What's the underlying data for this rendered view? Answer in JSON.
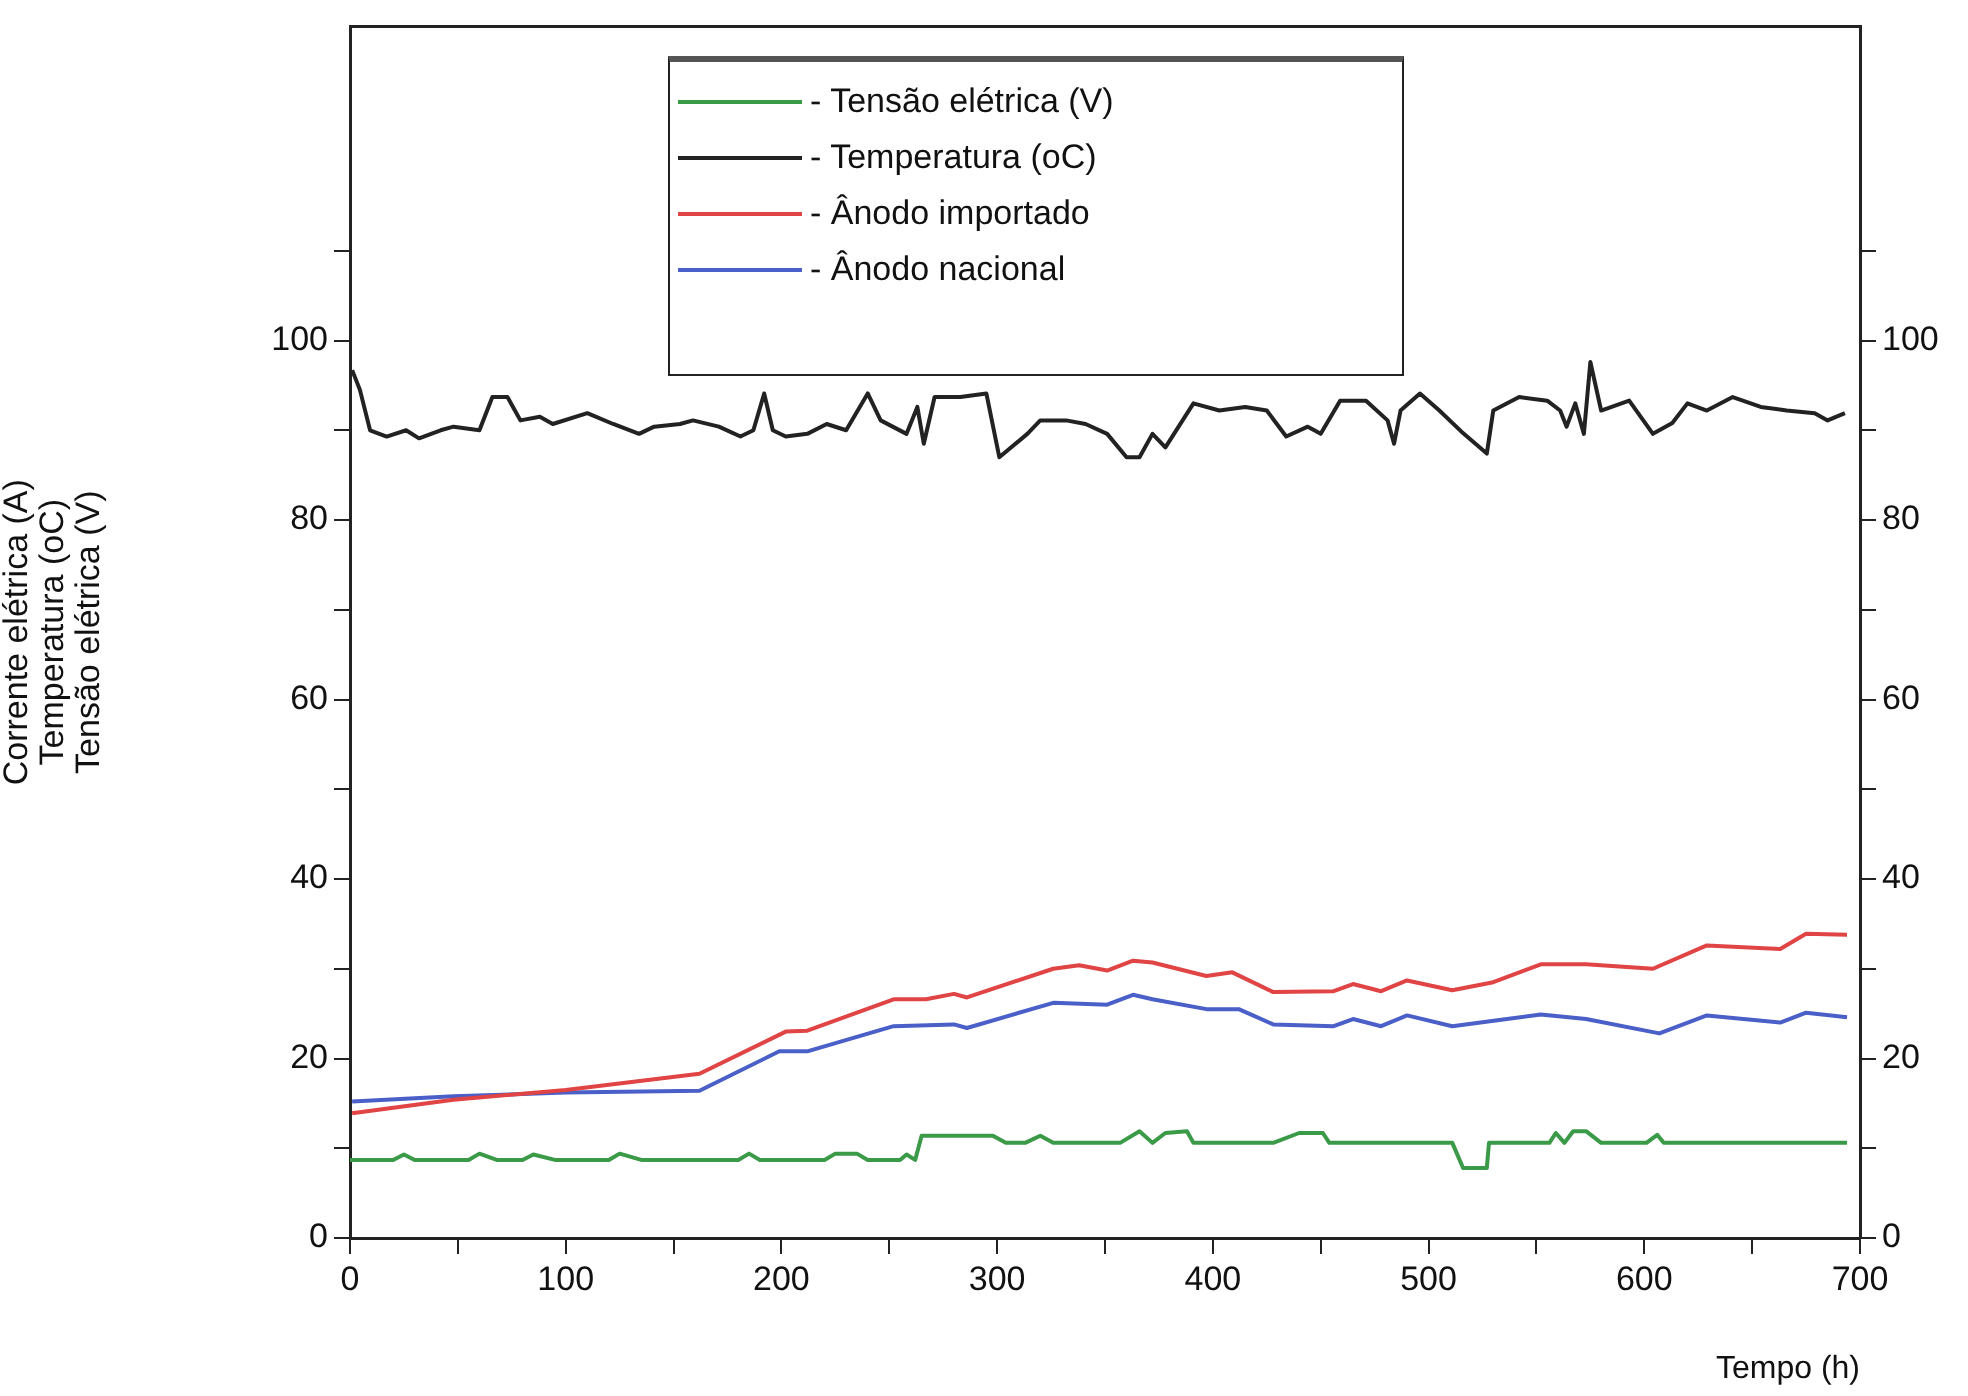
{
  "chart_data": {
    "type": "line",
    "xlabel": "Tempo (h)",
    "ylabel": "Corrente elétrica (A)\nTemperatura (oC)\nTensão elétrica (V)",
    "xlim": [
      0,
      700
    ],
    "xticks": [
      0,
      {
        "value": 50,
        "label": null
      },
      100,
      {
        "value": 150,
        "label": null
      },
      200,
      {
        "value": 250,
        "label": null
      },
      300,
      {
        "value": 350,
        "label": null
      },
      400,
      {
        "value": 450,
        "label": null
      },
      500,
      {
        "value": 550,
        "label": null
      },
      600,
      {
        "value": 650,
        "label": null
      },
      700
    ],
    "ylim": [
      0,
      135
    ],
    "yticks": [
      0,
      {
        "value": 10,
        "label": null
      },
      20,
      {
        "value": 30,
        "label": null
      },
      40,
      {
        "value": 50,
        "label": null
      },
      60,
      {
        "value": 70,
        "label": null
      },
      80,
      {
        "value": 90,
        "label": null
      },
      100,
      {
        "value": 110,
        "label": null
      }
    ],
    "y2lim": [
      0,
      135
    ],
    "y2ticks": [
      0,
      {
        "value": 10,
        "label": null
      },
      20,
      {
        "value": 30,
        "label": null
      },
      40,
      {
        "value": 50,
        "label": null
      },
      60,
      {
        "value": 70,
        "label": null
      },
      80,
      {
        "value": 90,
        "label": null
      },
      100,
      {
        "value": 110,
        "label": null
      }
    ],
    "grid": false,
    "legend": "top",
    "marker": "none",
    "line_style": "solid",
    "series": [
      {
        "name": "- Tensão elétrica (V)",
        "color": "#3a9a48",
        "x": [
          0,
          20,
          25,
          30,
          55,
          60,
          68,
          80,
          85,
          95,
          120,
          125,
          135,
          180,
          185,
          190,
          220,
          225,
          235,
          240,
          255,
          258,
          262,
          265,
          298,
          304,
          313,
          320,
          326,
          357,
          366,
          372,
          378,
          388,
          391,
          428,
          440,
          451,
          454,
          511,
          516,
          527,
          528,
          556,
          559,
          563,
          567,
          573,
          580,
          601,
          606,
          609,
          694
        ],
        "values": [
          8.7,
          8.7,
          9.3,
          8.7,
          8.7,
          9.4,
          8.7,
          8.7,
          9.3,
          8.7,
          8.7,
          9.4,
          8.7,
          8.7,
          9.4,
          8.7,
          8.7,
          9.4,
          9.4,
          8.7,
          8.7,
          9.3,
          8.7,
          11.4,
          11.4,
          10.6,
          10.6,
          11.4,
          10.6,
          10.6,
          11.9,
          10.6,
          11.7,
          11.9,
          10.6,
          10.6,
          11.7,
          11.7,
          10.6,
          10.6,
          7.8,
          7.8,
          10.6,
          10.6,
          11.7,
          10.6,
          11.9,
          11.9,
          10.6,
          10.6,
          11.5,
          10.6,
          10.6
        ]
      },
      {
        "name": "- Temperatura (oC)",
        "color": "#222222",
        "x": [
          1,
          4.6,
          9.3,
          17,
          26,
          32,
          42,
          48,
          60,
          66,
          73,
          79,
          88,
          94,
          110,
          122,
          134,
          141,
          153,
          159,
          171,
          181,
          187,
          192,
          196,
          202,
          212,
          221,
          230,
          240,
          246,
          258,
          263,
          266,
          271,
          283,
          295,
          301,
          314,
          320,
          332,
          341,
          351,
          360,
          366,
          372,
          378,
          391,
          403,
          415,
          425,
          434,
          444,
          450,
          459,
          471,
          481,
          484,
          487,
          496,
          505,
          515,
          527,
          530,
          542,
          555,
          561,
          564,
          568,
          572,
          575,
          580,
          593,
          604,
          613,
          620,
          629,
          641,
          654,
          666,
          679,
          685,
          693
        ],
        "values": [
          96.7,
          94.5,
          90.0,
          89.3,
          90.0,
          89.1,
          90.0,
          90.4,
          90.0,
          93.7,
          93.7,
          91.1,
          91.5,
          90.7,
          91.9,
          90.7,
          89.6,
          90.4,
          90.7,
          91.1,
          90.4,
          89.3,
          90.0,
          94.1,
          90.0,
          89.3,
          89.6,
          90.7,
          90.0,
          94.1,
          91.1,
          89.6,
          92.6,
          88.5,
          93.7,
          93.7,
          94.1,
          87.0,
          89.6,
          91.1,
          91.1,
          90.7,
          89.6,
          87.0,
          87.0,
          89.6,
          88.1,
          93.0,
          92.2,
          92.6,
          92.2,
          89.3,
          90.4,
          89.6,
          93.3,
          93.3,
          91.1,
          88.5,
          92.2,
          94.1,
          92.2,
          89.9,
          87.4,
          92.2,
          93.7,
          93.3,
          92.2,
          90.4,
          93.0,
          89.6,
          97.6,
          92.2,
          93.3,
          89.6,
          90.8,
          93.0,
          92.2,
          93.7,
          92.6,
          92.2,
          91.9,
          91.1,
          91.9
        ]
      },
      {
        "name": "- Ânodo importado",
        "color": "#e04444",
        "x": [
          1,
          48,
          100,
          162,
          202,
          212,
          252,
          267,
          280,
          286,
          326,
          338,
          351,
          363,
          372,
          397,
          409,
          428,
          456,
          465,
          478,
          490,
          511,
          530,
          552,
          573,
          604,
          629,
          663,
          675,
          694
        ],
        "values": [
          13.9,
          15.4,
          16.5,
          18.3,
          23.0,
          23.1,
          26.6,
          26.6,
          27.2,
          26.8,
          30.0,
          30.4,
          29.8,
          30.9,
          30.7,
          29.2,
          29.6,
          27.4,
          27.5,
          28.3,
          27.5,
          28.7,
          27.6,
          28.5,
          30.5,
          30.5,
          30.0,
          32.6,
          32.2,
          33.9,
          33.8
        ]
      },
      {
        "name": "- Ânodo nacional",
        "color": "#4a5fc8",
        "x": [
          1,
          48,
          100,
          162,
          199,
          212,
          252,
          280,
          286,
          326,
          351,
          363,
          372,
          397,
          412,
          428,
          456,
          465,
          478,
          490,
          511,
          552,
          573,
          607,
          629,
          663,
          675,
          694
        ],
        "values": [
          15.2,
          15.8,
          16.2,
          16.4,
          20.8,
          20.8,
          23.6,
          23.8,
          23.4,
          26.2,
          26.0,
          27.1,
          26.6,
          25.5,
          25.5,
          23.8,
          23.6,
          24.4,
          23.6,
          24.8,
          23.6,
          24.9,
          24.4,
          22.8,
          24.8,
          24.0,
          25.1,
          24.6
        ]
      }
    ]
  }
}
